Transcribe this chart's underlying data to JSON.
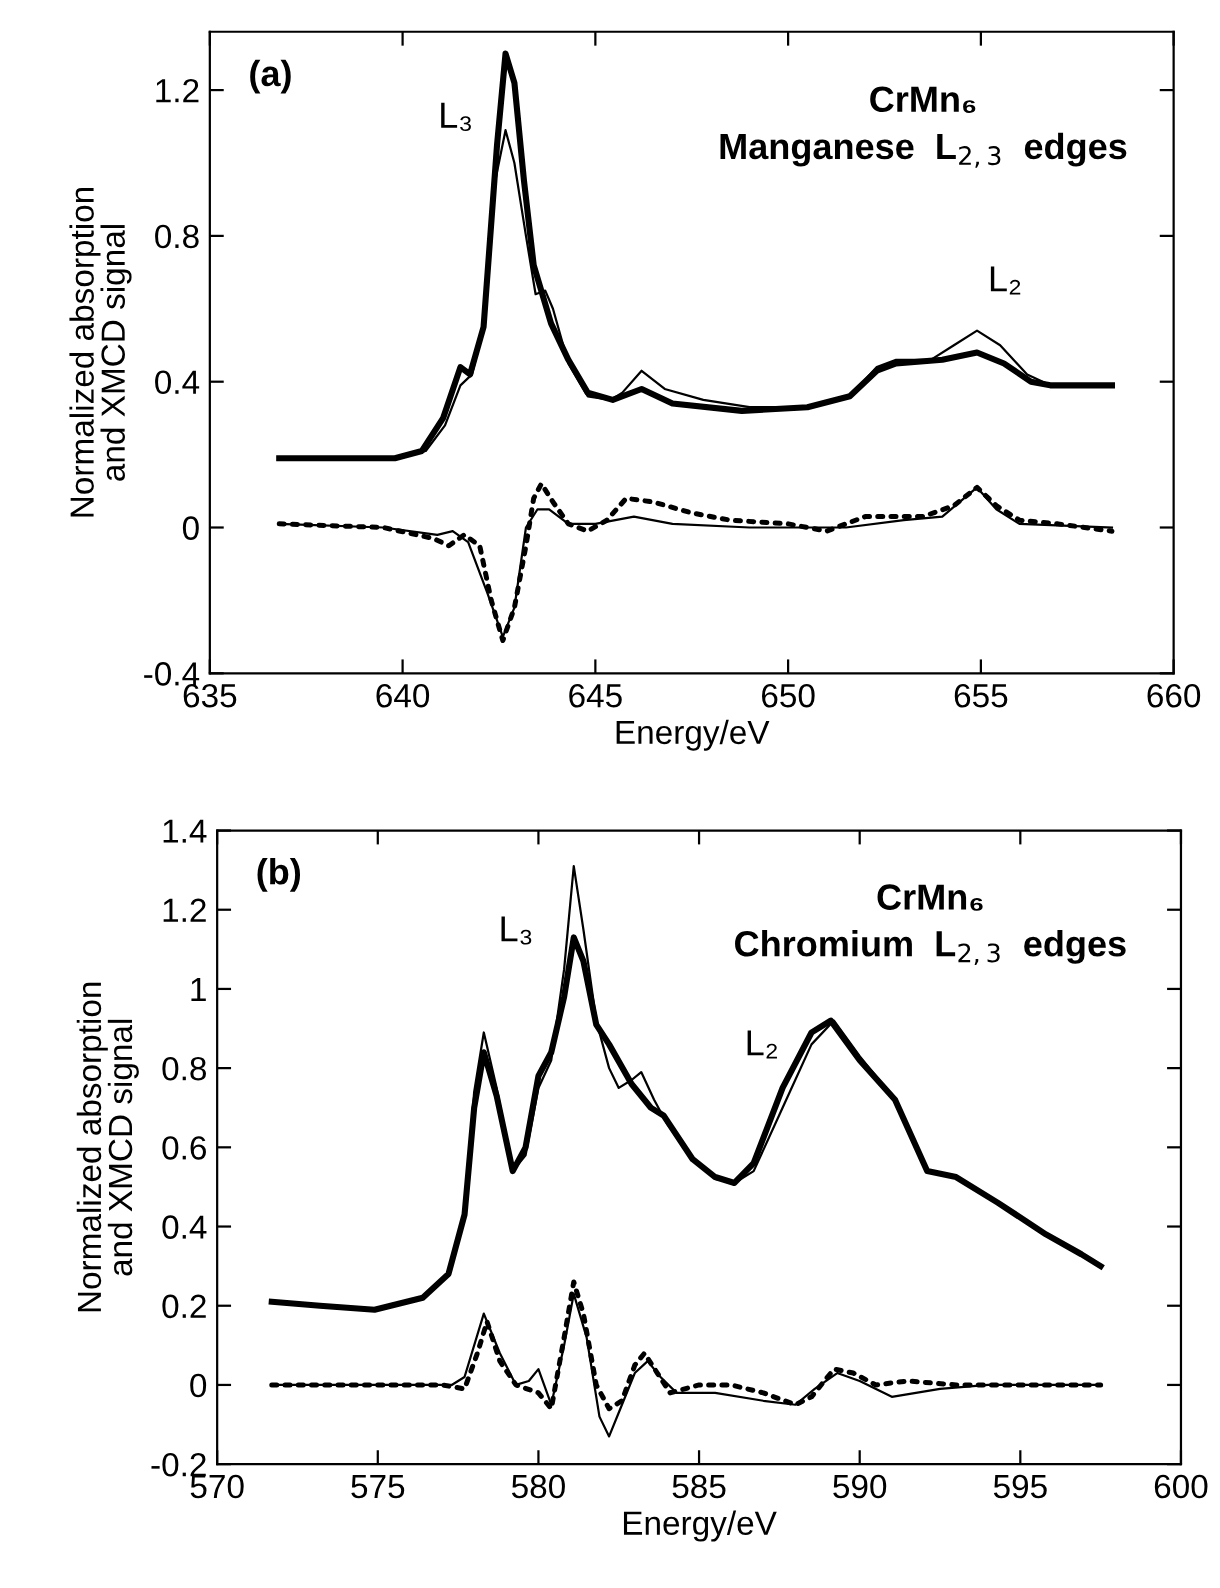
{
  "chart_data": [
    {
      "type": "line",
      "title": "(a)",
      "xlabel": "Energy/eV",
      "ylabel": "Normalized absorption\nand XMCD signal",
      "annotations": [
        "CrMn₆",
        "Manganese  L$_{2,3}$  edges",
        "L₃",
        "L₂"
      ],
      "xlim": [
        635,
        660
      ],
      "xticks": [
        635,
        640,
        645,
        650,
        655,
        660
      ],
      "ylim": [
        -0.4,
        1.36
      ],
      "yticks": [
        {
          "value": -0.4,
          "label": "-0.4"
        },
        0,
        0.4,
        0.8,
        1.2
      ],
      "grid": false,
      "legend": false,
      "marker": "none",
      "series": [
        {
          "color": "#000000",
          "line_style": "solid",
          "x": [
            636.8,
            639.8,
            640.5,
            641.05,
            641.5,
            641.75,
            642.1,
            642.45,
            642.67,
            642.9,
            643.15,
            643.4,
            643.85,
            644.3,
            644.8,
            645.45,
            646.2,
            647.0,
            648.8,
            650.5,
            651.6,
            652.3,
            652.8,
            654.0,
            654.9,
            655.6,
            656.3,
            656.8,
            658.4
          ],
          "values": [
            0.19,
            0.19,
            0.21,
            0.3,
            0.44,
            0.42,
            0.55,
            1.05,
            1.3,
            1.22,
            0.95,
            0.72,
            0.56,
            0.46,
            0.37,
            0.35,
            0.38,
            0.34,
            0.32,
            0.33,
            0.36,
            0.43,
            0.45,
            0.46,
            0.48,
            0.45,
            0.4,
            0.39,
            0.39
          ]
        },
        {
          "color": "#000000",
          "line_style": "solid",
          "x": [
            636.8,
            639.8,
            640.6,
            641.1,
            641.5,
            641.8,
            642.1,
            642.4,
            642.67,
            642.9,
            643.2,
            643.45,
            643.7,
            643.9,
            644.3,
            644.8,
            645.4,
            645.7,
            646.2,
            646.8,
            647.8,
            649.0,
            650.5,
            651.6,
            652.3,
            652.8,
            653.7,
            654.3,
            654.9,
            655.5,
            656.2,
            656.8,
            658.4
          ],
          "values": [
            0.19,
            0.19,
            0.21,
            0.28,
            0.39,
            0.42,
            0.55,
            0.95,
            1.09,
            1.0,
            0.8,
            0.64,
            0.65,
            0.6,
            0.45,
            0.36,
            0.35,
            0.37,
            0.43,
            0.38,
            0.35,
            0.33,
            0.33,
            0.36,
            0.44,
            0.46,
            0.46,
            0.5,
            0.54,
            0.5,
            0.42,
            0.39,
            0.39
          ]
        },
        {
          "color": "#000000",
          "line_style": "dotted",
          "x": [
            636.8,
            639.5,
            640.8,
            641.2,
            641.6,
            642.0,
            642.3,
            642.6,
            642.9,
            643.2,
            643.4,
            643.6,
            643.9,
            644.3,
            644.8,
            645.3,
            645.8,
            646.5,
            647.5,
            648.5,
            650.0,
            651.0,
            652.0,
            653.5,
            654.3,
            654.9,
            655.4,
            656.0,
            657.0,
            658.4
          ],
          "values": [
            0.01,
            0.0,
            -0.03,
            -0.05,
            -0.02,
            -0.05,
            -0.2,
            -0.31,
            -0.22,
            -0.05,
            0.08,
            0.12,
            0.07,
            0.01,
            -0.01,
            0.02,
            0.08,
            0.07,
            0.04,
            0.02,
            0.01,
            -0.01,
            0.03,
            0.03,
            0.06,
            0.11,
            0.06,
            0.02,
            0.01,
            -0.01
          ]
        },
        {
          "color": "#000000",
          "line_style": "solid",
          "x": [
            636.8,
            639.5,
            640.9,
            641.3,
            641.7,
            642.2,
            642.6,
            642.9,
            643.2,
            643.5,
            643.8,
            644.3,
            645.0,
            646.0,
            647.0,
            649.0,
            651.5,
            653.0,
            654.0,
            654.9,
            655.4,
            656.0,
            658.4
          ],
          "values": [
            0.01,
            0.0,
            -0.02,
            -0.01,
            -0.04,
            -0.18,
            -0.3,
            -0.22,
            0.0,
            0.05,
            0.05,
            0.01,
            0.01,
            0.03,
            0.01,
            0.0,
            0.0,
            0.02,
            0.03,
            0.11,
            0.05,
            0.01,
            0.0
          ]
        }
      ]
    },
    {
      "type": "line",
      "title": "(b)",
      "xlabel": "Energy/eV",
      "ylabel": "Normalized absorption\nand XMCD signal",
      "annotations": [
        "CrMn₆",
        "Chromium  L$_{2,3}$  edges",
        "L₃",
        "L₂"
      ],
      "xlim": [
        570,
        600
      ],
      "xticks": [
        570,
        575,
        580,
        585,
        590,
        595,
        600
      ],
      "ylim": [
        -0.2,
        1.4
      ],
      "yticks": [
        {
          "value": -0.2,
          "label": "-0.2"
        },
        0,
        0.2,
        0.4,
        0.6,
        0.8,
        1,
        1.2,
        1.4
      ],
      "grid": false,
      "legend": false,
      "marker": "none",
      "series": [
        {
          "color": "#000000",
          "line_style": "solid",
          "x": [
            571.7,
            573.2,
            574.9,
            576.4,
            577.2,
            577.7,
            578.0,
            578.3,
            578.7,
            579.2,
            579.6,
            580.0,
            580.4,
            580.8,
            581.1,
            581.4,
            581.8,
            582.2,
            582.9,
            583.5,
            583.9,
            584.8,
            585.5,
            586.1,
            586.7,
            587.6,
            588.5,
            589.1,
            590.0,
            591.1,
            592.1,
            593.0,
            594.3,
            595.8,
            596.9,
            597.5
          ],
          "values": [
            0.21,
            0.2,
            0.19,
            0.22,
            0.28,
            0.43,
            0.7,
            0.84,
            0.73,
            0.54,
            0.6,
            0.78,
            0.84,
            0.98,
            1.13,
            1.07,
            0.91,
            0.86,
            0.76,
            0.7,
            0.68,
            0.57,
            0.525,
            0.51,
            0.56,
            0.75,
            0.89,
            0.92,
            0.82,
            0.72,
            0.54,
            0.525,
            0.46,
            0.38,
            0.33,
            0.3
          ]
        },
        {
          "color": "#000000",
          "line_style": "solid",
          "x": [
            571.7,
            574.9,
            576.4,
            577.2,
            577.7,
            578.0,
            578.3,
            578.7,
            579.2,
            579.6,
            580.0,
            580.4,
            580.8,
            581.1,
            581.4,
            581.8,
            582.2,
            582.5,
            582.9,
            583.2,
            583.6,
            584.0,
            584.8,
            585.5,
            586.1,
            586.7,
            587.6,
            588.5,
            589.2,
            590.0,
            591.1,
            592.1,
            593.0,
            594.3,
            595.8,
            596.9,
            597.5
          ],
          "values": [
            0.21,
            0.19,
            0.22,
            0.28,
            0.43,
            0.74,
            0.89,
            0.75,
            0.54,
            0.58,
            0.75,
            0.82,
            1.05,
            1.31,
            1.15,
            0.92,
            0.8,
            0.75,
            0.77,
            0.79,
            0.72,
            0.66,
            0.57,
            0.52,
            0.51,
            0.54,
            0.7,
            0.86,
            0.92,
            0.83,
            0.72,
            0.54,
            0.525,
            0.46,
            0.38,
            0.33,
            0.3
          ]
        },
        {
          "color": "#000000",
          "line_style": "dotted",
          "x": [
            571.7,
            577.0,
            577.7,
            578.1,
            578.4,
            578.8,
            579.3,
            580.0,
            580.4,
            580.8,
            581.1,
            581.4,
            581.8,
            582.2,
            582.6,
            583.0,
            583.3,
            583.7,
            584.1,
            585.0,
            586.0,
            587.0,
            588.0,
            588.5,
            589.2,
            589.8,
            590.5,
            591.5,
            593.0,
            597.5
          ],
          "values": [
            0.0,
            0.0,
            -0.01,
            0.08,
            0.16,
            0.06,
            0.0,
            -0.02,
            -0.06,
            0.12,
            0.26,
            0.18,
            0.0,
            -0.06,
            -0.04,
            0.05,
            0.08,
            0.03,
            -0.02,
            0.0,
            0.0,
            -0.02,
            -0.05,
            -0.03,
            0.04,
            0.03,
            0.0,
            0.01,
            0.0,
            0.0
          ]
        },
        {
          "color": "#000000",
          "line_style": "solid",
          "x": [
            571.7,
            577.3,
            577.7,
            578.3,
            578.8,
            579.3,
            579.7,
            580.0,
            580.4,
            580.8,
            581.1,
            581.5,
            581.9,
            582.2,
            582.6,
            583.0,
            583.4,
            583.8,
            584.3,
            585.5,
            587.0,
            588.0,
            588.6,
            589.3,
            590.0,
            591.0,
            592.5,
            594.0,
            597.5
          ],
          "values": [
            0.0,
            0.0,
            0.02,
            0.18,
            0.08,
            0.0,
            0.01,
            0.04,
            -0.05,
            0.1,
            0.23,
            0.12,
            -0.08,
            -0.13,
            -0.05,
            0.03,
            0.06,
            0.02,
            -0.02,
            -0.02,
            -0.04,
            -0.05,
            -0.01,
            0.03,
            0.01,
            -0.03,
            -0.01,
            0.0,
            0.0
          ]
        }
      ]
    }
  ]
}
